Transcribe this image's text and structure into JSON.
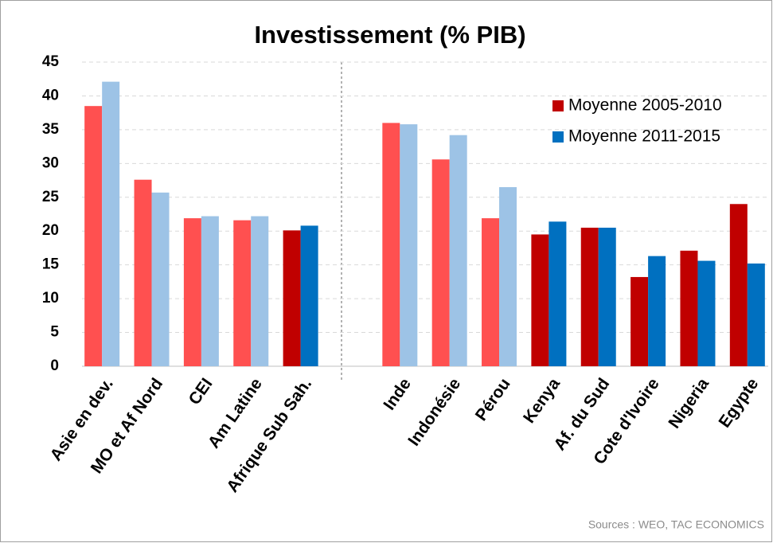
{
  "chart_data": {
    "type": "bar",
    "title": "Investissement (% PIB)",
    "categories": [
      "Asie en dev.",
      "MO et Af Nord",
      "CEI",
      "Am Latine",
      "Afrique Sub Sah.",
      null,
      "Inde",
      "Indonésie",
      "Pérou",
      "Kenya",
      "Af. du Sud",
      "Cote d'Ivoire",
      "Nigeria",
      "Egypte"
    ],
    "series": [
      {
        "name": "Moyenne 2005-2010",
        "color": "#c00000",
        "colors": [
          "#ff5050",
          "#ff5050",
          "#ff5050",
          "#ff5050",
          "#c00000",
          null,
          "#ff5050",
          "#ff5050",
          "#ff5050",
          "#c00000",
          "#c00000",
          "#c00000",
          "#c00000",
          "#c00000"
        ],
        "values": [
          38.5,
          27.6,
          21.9,
          21.6,
          20.1,
          null,
          36.0,
          30.6,
          21.9,
          19.5,
          20.5,
          13.2,
          17.1,
          24.0
        ]
      },
      {
        "name": "Moyenne 2011-2015",
        "color": "#0070c0",
        "colors": [
          "#9dc3e6",
          "#9dc3e6",
          "#9dc3e6",
          "#9dc3e6",
          "#0070c0",
          null,
          "#9dc3e6",
          "#9dc3e6",
          "#9dc3e6",
          "#0070c0",
          "#0070c0",
          "#0070c0",
          "#0070c0",
          "#0070c0"
        ],
        "values": [
          42.1,
          25.7,
          22.2,
          22.2,
          20.8,
          null,
          35.8,
          34.2,
          26.5,
          21.4,
          20.5,
          16.3,
          15.6,
          15.2
        ]
      }
    ],
    "ylim": [
      0,
      45
    ],
    "yticks": [
      0,
      5,
      10,
      15,
      20,
      25,
      30,
      35,
      40,
      45
    ],
    "grid": true,
    "legend": "upper right",
    "source": "Sources : WEO, TAC ECONOMICS"
  }
}
